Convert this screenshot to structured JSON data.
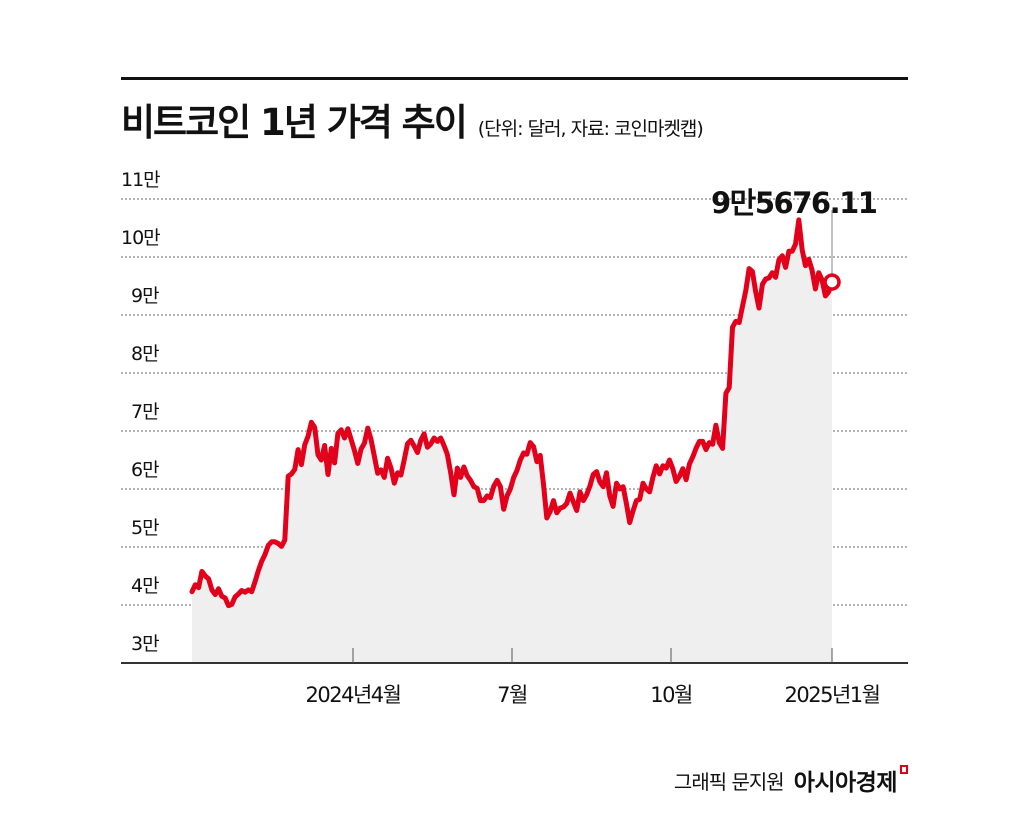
{
  "header": {
    "title": "비트코인 1년 가격 추이",
    "subtitle": "(단위: 달러, 자료: 코인마켓캡)"
  },
  "y_axis": {
    "ticks": [
      "11만",
      "10만",
      "9만",
      "8만",
      "7만",
      "6만",
      "5만",
      "4만",
      "3만"
    ]
  },
  "x_axis": {
    "ticks": [
      "2024년4월",
      "7월",
      "10월",
      "2025년1월"
    ]
  },
  "annotation": {
    "last_value_label": "9만5676.11"
  },
  "footer": {
    "credit": "그래픽 문지원",
    "brand": "아시아경제"
  },
  "colors": {
    "line": "#e3001b",
    "area_fill": "#efefef",
    "grid": "#888888",
    "axis": "#333333"
  },
  "chart_data": {
    "type": "area",
    "title": "비트코인 1년 가격 추이",
    "subtitle": "(단위: 달러, 자료: 코인마켓캡)",
    "xlabel": "",
    "ylabel": "달러",
    "ylim": [
      30000,
      110000
    ],
    "y_ticks": [
      30000,
      40000,
      50000,
      60000,
      70000,
      80000,
      90000,
      100000,
      110000
    ],
    "x_tick_labels": [
      "2024년4월",
      "7월",
      "10월",
      "2025년1월"
    ],
    "grid": "horizontal dotted",
    "legend": "none",
    "annotations": [
      {
        "label": "9만5676.11",
        "value": 95676.11,
        "position": "last point"
      }
    ],
    "series": [
      {
        "name": "비트코인 가격",
        "x_start": "2024-01 (approx)",
        "x_end": "2025-01",
        "values": [
          42300,
          43500,
          43000,
          45800,
          45000,
          44500,
          42600,
          41800,
          42800,
          41500,
          41200,
          39900,
          40100,
          41400,
          41900,
          42500,
          42200,
          42600,
          42300,
          44000,
          45900,
          47500,
          48700,
          50300,
          50900,
          50900,
          50600,
          50100,
          51200,
          62200,
          62600,
          63400,
          66800,
          64200,
          67600,
          69100,
          71500,
          70600,
          65900,
          65000,
          67500,
          62500,
          67000,
          64500,
          69600,
          70200,
          68800,
          70400,
          68500,
          66600,
          64400,
          66900,
          67900,
          70500,
          68500,
          65600,
          62700,
          63300,
          62000,
          65300,
          63600,
          61000,
          62800,
          62400,
          65000,
          67800,
          68400,
          67400,
          66300,
          68400,
          69500,
          67200,
          67800,
          68800,
          68200,
          68800,
          67500,
          66000,
          62800,
          59000,
          63600,
          62000,
          63800,
          62300,
          61500,
          60400,
          60100,
          58000,
          58000,
          58800,
          58500,
          60500,
          61500,
          60400,
          56500,
          58800,
          60000,
          62000,
          63200,
          65000,
          66200,
          66000,
          68000,
          67300,
          64700,
          65800,
          60800,
          55000,
          56100,
          58000,
          55900,
          56700,
          56900,
          57500,
          59300,
          57800,
          56300,
          59500,
          58000,
          59000,
          60500,
          62500,
          63000,
          61200,
          60400,
          62800,
          58800,
          57000,
          61000,
          60000,
          60400,
          57500,
          54200,
          56200,
          58000,
          58200,
          61000,
          60000,
          59500,
          62000,
          64000,
          62600,
          64000,
          63600,
          65000,
          63500,
          61300,
          62200,
          63500,
          61600,
          64300,
          65500,
          67000,
          68200,
          68200,
          66800,
          68000,
          67700,
          71000,
          68000,
          67000,
          76500,
          77500,
          87900,
          88900,
          88700,
          91500,
          94200,
          98000,
          97500,
          94000,
          91200,
          95300,
          96200,
          96400,
          97300,
          96500,
          99500,
          100200,
          98200,
          101000,
          101000,
          102200,
          106400,
          101200,
          98500,
          99600,
          97700,
          94500,
          97300,
          96000,
          93300,
          94000,
          95676.11
        ]
      }
    ]
  }
}
